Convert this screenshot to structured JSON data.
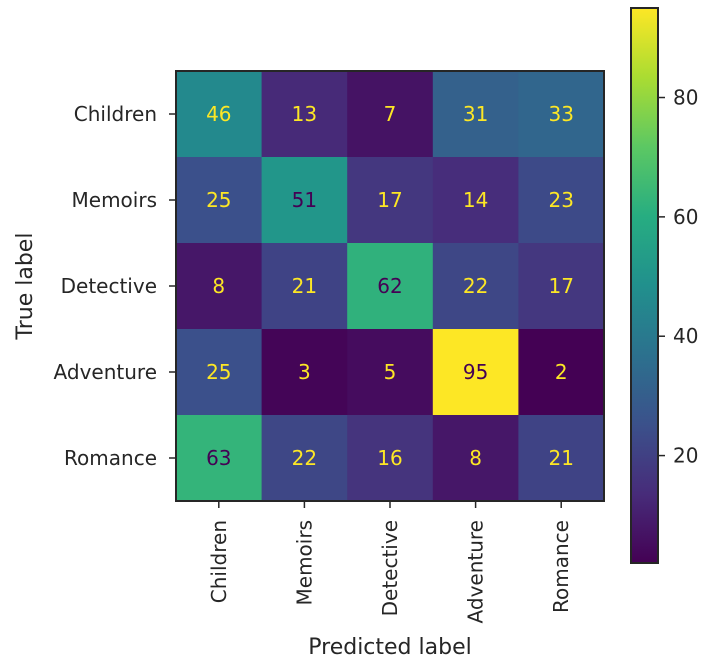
{
  "chart_data": {
    "type": "heatmap",
    "title": "",
    "xlabel": "Predicted label",
    "ylabel": "True label",
    "x_categories": [
      "Children",
      "Memoirs",
      "Detective",
      "Adventure",
      "Romance"
    ],
    "y_categories": [
      "Children",
      "Memoirs",
      "Detective",
      "Adventure",
      "Romance"
    ],
    "values": [
      [
        46,
        13,
        7,
        31,
        33
      ],
      [
        25,
        51,
        17,
        14,
        23
      ],
      [
        8,
        21,
        62,
        22,
        17
      ],
      [
        25,
        3,
        5,
        95,
        2
      ],
      [
        63,
        22,
        16,
        8,
        21
      ]
    ],
    "colormap": "viridis",
    "color_range": [
      2,
      95
    ],
    "colorbar_ticks": [
      20,
      40,
      60,
      80
    ],
    "text_color_dark": "#440154",
    "text_color_light": "#fde725",
    "grid": false
  }
}
